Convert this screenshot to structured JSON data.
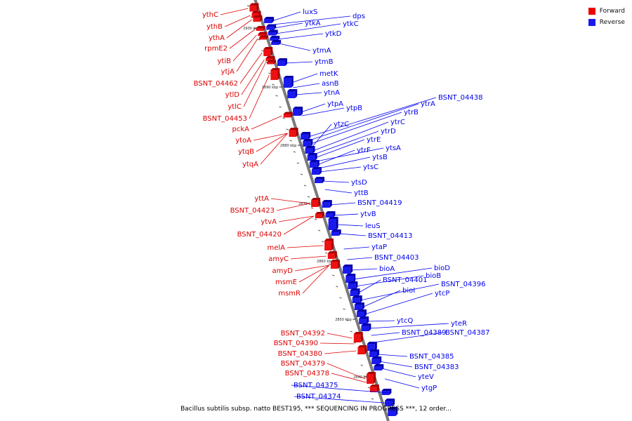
{
  "legend": {
    "forward_label": "Forward",
    "reverse_label": "Reverse",
    "forward_color": "#ee0000",
    "reverse_color": "#1a1aee"
  },
  "caption": "Bacillus subtilis subsp. natto BEST195, *** SEQUENCING IN PROGRESS ***, 12 order...",
  "colors": {
    "forward": "#dd0000",
    "reverse": "#0000ee",
    "backbone": "#707070"
  },
  "ticks": [
    {
      "label": "2900 kbp",
      "value": 2900
    },
    {
      "label": "2890 kbp",
      "value": 2890
    },
    {
      "label": "2880 kbp",
      "value": 2880
    },
    {
      "label": "2870 kbp",
      "value": 2870
    },
    {
      "label": "2860 kbp",
      "value": 2860
    },
    {
      "label": "2850 kbp",
      "value": 2850
    },
    {
      "label": "2840 kbp",
      "value": 2840
    }
  ],
  "forward_genes": [
    "ythC",
    "ythB",
    "ythA",
    "rpmE2",
    "ytiB",
    "ytjA",
    "BSNT_04462",
    "ytlD",
    "ytlC",
    "BSNT_04453",
    "pckA",
    "ytoA",
    "ytqB",
    "ytqA",
    "yttA",
    "BSNT_04423",
    "ytvA",
    "BSNT_04420",
    "melA",
    "amyC",
    "amyD",
    "msmE",
    "msmR",
    "BSNT_04392",
    "BSNT_04390",
    "BSNT_04380",
    "BSNT_04379",
    "BSNT_04378"
  ],
  "reverse_genes": [
    "luxS",
    "dps",
    "ytkA",
    "ytkC",
    "ytkD",
    "ytmA",
    "ytmB",
    "metK",
    "asnB",
    "ytnA",
    "ytpA",
    "ytpB",
    "BSNT_04438",
    "ytrA",
    "ytrB",
    "ytzC",
    "ytrC",
    "ytrD",
    "ytrE",
    "ytsA",
    "ytrF",
    "ytsB",
    "ytsC",
    "ytsD",
    "yttB",
    "BSNT_04419",
    "ytvB",
    "leuS",
    "BSNT_04413",
    "ytaP",
    "BSNT_04403",
    "bioA",
    "bioD",
    "bioB",
    "BSNT_04401",
    "BSNT_04396",
    "bioI",
    "ytcP",
    "ytcQ",
    "yteR",
    "BSNT_04389",
    "BSNT_04387",
    "BSNT_04385",
    "BSNT_04383",
    "yteV",
    "ytgP",
    "BSNT_04375",
    "BSNT_04374"
  ]
}
